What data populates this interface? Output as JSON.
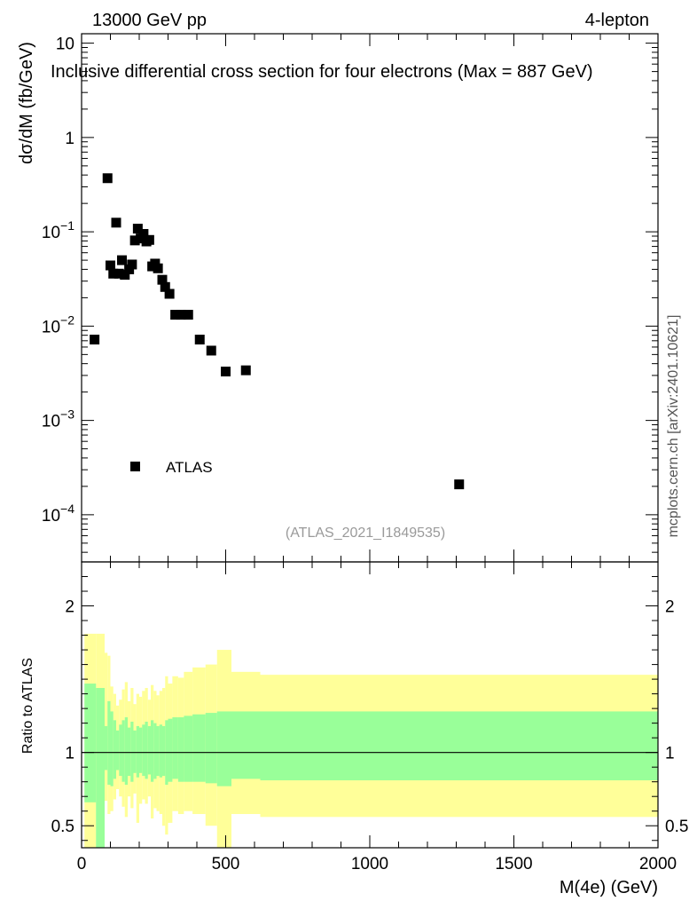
{
  "header": {
    "left": "13000 GeV pp",
    "right": "4-lepton"
  },
  "side_label": "mcplots.cern.ch [arXiv:2401.10621]",
  "watermark": "(ATLAS_2021_I1849535)",
  "colors": {
    "data": "#000000",
    "band_inner": "#99ff99",
    "band_outer": "#ffff99"
  },
  "chart_data": [
    {
      "type": "scatter",
      "title": "Inclusive differential cross section for four electrons (Max = 887 GeV)",
      "xlabel": "",
      "ylabel": "dσ/dM (fb/GeV)",
      "xlim": [
        0,
        2000
      ],
      "ylog": true,
      "ylim_exp": [
        -4.5,
        1.1
      ],
      "ytick_labels": [
        {
          "exp": 1,
          "base": "10",
          "sup": ""
        },
        {
          "exp": 0,
          "base": "1",
          "sup": ""
        },
        {
          "exp": -1,
          "base": "10",
          "sup": "−1"
        },
        {
          "exp": -2,
          "base": "10",
          "sup": "−2"
        },
        {
          "exp": -3,
          "base": "10",
          "sup": "−3"
        },
        {
          "exp": -4,
          "base": "10",
          "sup": "−4"
        }
      ],
      "legend": [
        {
          "label": "ATLAS",
          "marker": "square"
        }
      ],
      "series": [
        {
          "name": "ATLAS",
          "x": [
            45,
            90,
            100,
            110,
            120,
            130,
            140,
            150,
            165,
            175,
            185,
            195,
            205,
            215,
            225,
            235,
            245,
            255,
            265,
            280,
            290,
            305,
            325,
            345,
            370,
            410,
            450,
            500,
            570,
            1310
          ],
          "y": [
            0.0072,
            0.37,
            0.044,
            0.036,
            0.125,
            0.036,
            0.05,
            0.035,
            0.04,
            0.045,
            0.081,
            0.108,
            0.085,
            0.095,
            0.079,
            0.082,
            0.043,
            0.046,
            0.041,
            0.031,
            0.026,
            0.022,
            0.0132,
            0.0132,
            0.0132,
            0.0072,
            0.0055,
            0.0033,
            0.0034,
            0.00021
          ]
        }
      ]
    },
    {
      "type": "area",
      "title": "",
      "xlabel": "M(4e) (GeV)",
      "ylabel": "Ratio to ATLAS",
      "xlim": [
        0,
        2000
      ],
      "ylim": [
        0.35,
        2.3
      ],
      "xticks": [
        0,
        500,
        1000,
        1500,
        2000
      ],
      "xtick_labels": [
        "0",
        "500",
        "1000",
        "1500",
        "2000"
      ],
      "yticks": [
        0.5,
        1,
        2
      ],
      "ytick_labels": [
        "0.5",
        "1",
        "2"
      ],
      "reference_line": 1,
      "bins": [
        {
          "x0": 10,
          "x1": 50,
          "inner": [
            0.66,
            1.47
          ],
          "outer": [
            0.3,
            1.81
          ]
        },
        {
          "x0": 50,
          "x1": 80,
          "inner": [
            0.3,
            1.44
          ],
          "outer": [
            0.3,
            1.81
          ]
        },
        {
          "x0": 80,
          "x1": 90,
          "inner": [
            0.88,
            1.18
          ],
          "outer": [
            0.67,
            1.68
          ]
        },
        {
          "x0": 90,
          "x1": 100,
          "inner": [
            0.78,
            1.35
          ],
          "outer": [
            0.58,
            1.66
          ]
        },
        {
          "x0": 100,
          "x1": 110,
          "inner": [
            0.77,
            1.28
          ],
          "outer": [
            0.6,
            1.45
          ]
        },
        {
          "x0": 110,
          "x1": 120,
          "inner": [
            0.82,
            1.22
          ],
          "outer": [
            0.68,
            1.4
          ]
        },
        {
          "x0": 120,
          "x1": 130,
          "inner": [
            0.88,
            1.15
          ],
          "outer": [
            0.75,
            1.32
          ]
        },
        {
          "x0": 130,
          "x1": 140,
          "inner": [
            0.84,
            1.19
          ],
          "outer": [
            0.7,
            1.36
          ]
        },
        {
          "x0": 140,
          "x1": 150,
          "inner": [
            0.8,
            1.22
          ],
          "outer": [
            0.63,
            1.43
          ]
        },
        {
          "x0": 150,
          "x1": 160,
          "inner": [
            0.78,
            1.24
          ],
          "outer": [
            0.56,
            1.48
          ]
        },
        {
          "x0": 160,
          "x1": 170,
          "inner": [
            0.84,
            1.17
          ],
          "outer": [
            0.7,
            1.35
          ]
        },
        {
          "x0": 170,
          "x1": 180,
          "inner": [
            0.8,
            1.21
          ],
          "outer": [
            0.62,
            1.44
          ]
        },
        {
          "x0": 180,
          "x1": 190,
          "inner": [
            0.86,
            1.15
          ],
          "outer": [
            0.72,
            1.33
          ]
        },
        {
          "x0": 190,
          "x1": 200,
          "inner": [
            0.83,
            1.18
          ],
          "outer": [
            0.52,
            1.4
          ]
        },
        {
          "x0": 200,
          "x1": 210,
          "inner": [
            0.86,
            1.17
          ],
          "outer": [
            0.65,
            1.38
          ]
        },
        {
          "x0": 210,
          "x1": 220,
          "inner": [
            0.84,
            1.19
          ],
          "outer": [
            0.68,
            1.42
          ]
        },
        {
          "x0": 220,
          "x1": 230,
          "inner": [
            0.82,
            1.21
          ],
          "outer": [
            0.65,
            1.44
          ]
        },
        {
          "x0": 230,
          "x1": 240,
          "inner": [
            0.85,
            1.18
          ],
          "outer": [
            0.7,
            1.36
          ]
        },
        {
          "x0": 240,
          "x1": 250,
          "inner": [
            0.8,
            1.22
          ],
          "outer": [
            0.55,
            1.46
          ]
        },
        {
          "x0": 250,
          "x1": 260,
          "inner": [
            0.82,
            1.2
          ],
          "outer": [
            0.62,
            1.42
          ]
        },
        {
          "x0": 260,
          "x1": 270,
          "inner": [
            0.84,
            1.18
          ],
          "outer": [
            0.6,
            1.39
          ]
        },
        {
          "x0": 270,
          "x1": 280,
          "inner": [
            0.83,
            1.19
          ],
          "outer": [
            0.58,
            1.42
          ]
        },
        {
          "x0": 280,
          "x1": 290,
          "inner": [
            0.84,
            1.18
          ],
          "outer": [
            0.5,
            1.44
          ]
        },
        {
          "x0": 290,
          "x1": 300,
          "inner": [
            0.78,
            1.22
          ],
          "outer": [
            0.44,
            1.52
          ]
        },
        {
          "x0": 300,
          "x1": 315,
          "inner": [
            0.8,
            1.23
          ],
          "outer": [
            0.52,
            1.47
          ]
        },
        {
          "x0": 315,
          "x1": 335,
          "inner": [
            0.82,
            1.24
          ],
          "outer": [
            0.6,
            1.52
          ]
        },
        {
          "x0": 335,
          "x1": 355,
          "inner": [
            0.8,
            1.24
          ],
          "outer": [
            0.58,
            1.51
          ]
        },
        {
          "x0": 355,
          "x1": 385,
          "inner": [
            0.8,
            1.25
          ],
          "outer": [
            0.6,
            1.55
          ]
        },
        {
          "x0": 385,
          "x1": 430,
          "inner": [
            0.8,
            1.26
          ],
          "outer": [
            0.58,
            1.58
          ]
        },
        {
          "x0": 430,
          "x1": 470,
          "inner": [
            0.79,
            1.27
          ],
          "outer": [
            0.5,
            1.6
          ]
        },
        {
          "x0": 470,
          "x1": 520,
          "inner": [
            0.77,
            1.28
          ],
          "outer": [
            0.3,
            1.7
          ]
        },
        {
          "x0": 520,
          "x1": 620,
          "inner": [
            0.82,
            1.28
          ],
          "outer": [
            0.58,
            1.55
          ]
        },
        {
          "x0": 620,
          "x1": 2000,
          "inner": [
            0.81,
            1.28
          ],
          "outer": [
            0.56,
            1.53
          ]
        }
      ]
    }
  ]
}
